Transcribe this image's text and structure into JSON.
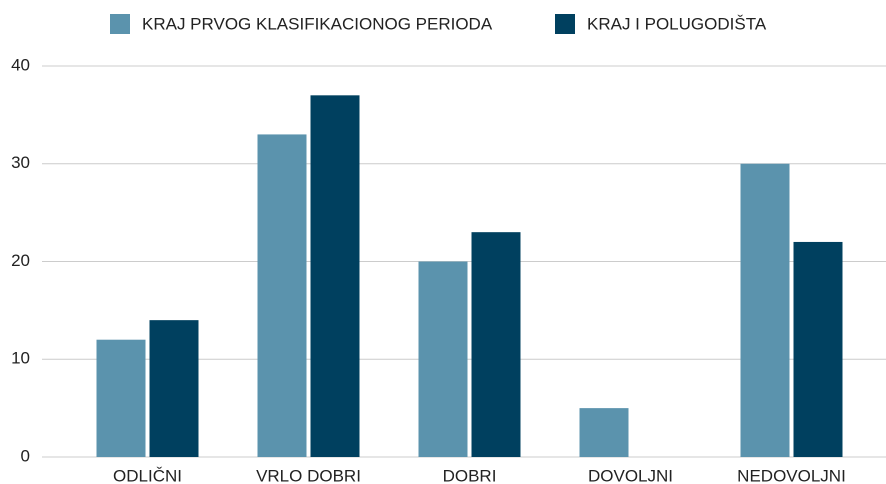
{
  "chart_data": {
    "type": "bar",
    "categories": [
      "ODLIČNI",
      "VRLO DOBRI",
      "DOBRI",
      "DOVOLJNI",
      "NEDOVOLJNI"
    ],
    "series": [
      {
        "name": "KRAJ PRVOG KLASIFIKACIONOG PERIODA",
        "color": "#5b93ad",
        "values": [
          12,
          33,
          20,
          5,
          30
        ]
      },
      {
        "name": "KRAJ I POLUGODIŠTA",
        "color": "#00405f",
        "values": [
          14,
          37,
          23,
          0,
          22
        ]
      }
    ],
    "ylim": [
      0,
      40
    ],
    "yticks": [
      0,
      10,
      20,
      30,
      40
    ],
    "grid": true,
    "legend": "top"
  }
}
